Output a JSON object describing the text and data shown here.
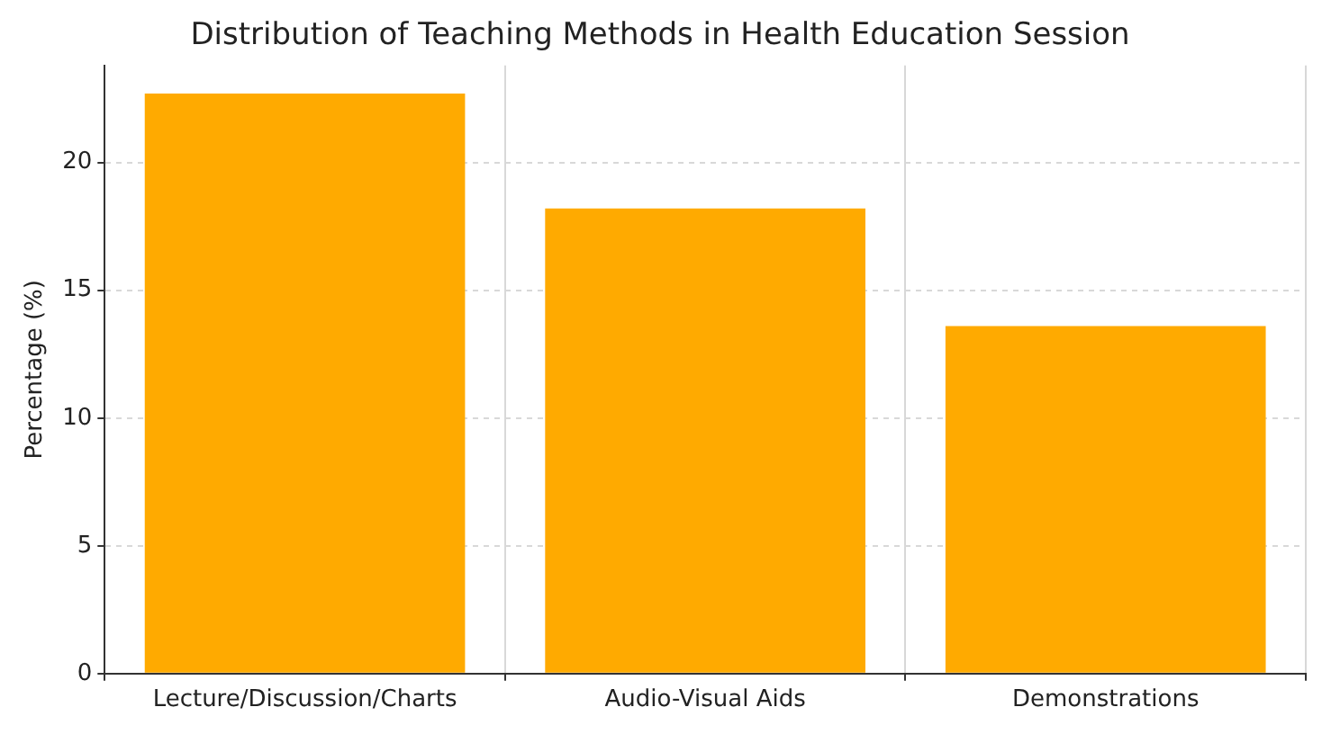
{
  "chart_data": {
    "type": "bar",
    "title": "Distribution of Teaching Methods in Health Education Session",
    "ylabel": "Percentage (%)",
    "categories": [
      "Lecture/Discussion/Charts",
      "Audio-Visual Aids",
      "Demonstrations"
    ],
    "values": [
      22.7,
      18.2,
      13.6
    ],
    "color": "#ffaa00",
    "ylim": [
      0,
      23.8
    ],
    "yticks": [
      0,
      5,
      10,
      15,
      20
    ],
    "grid": true
  }
}
